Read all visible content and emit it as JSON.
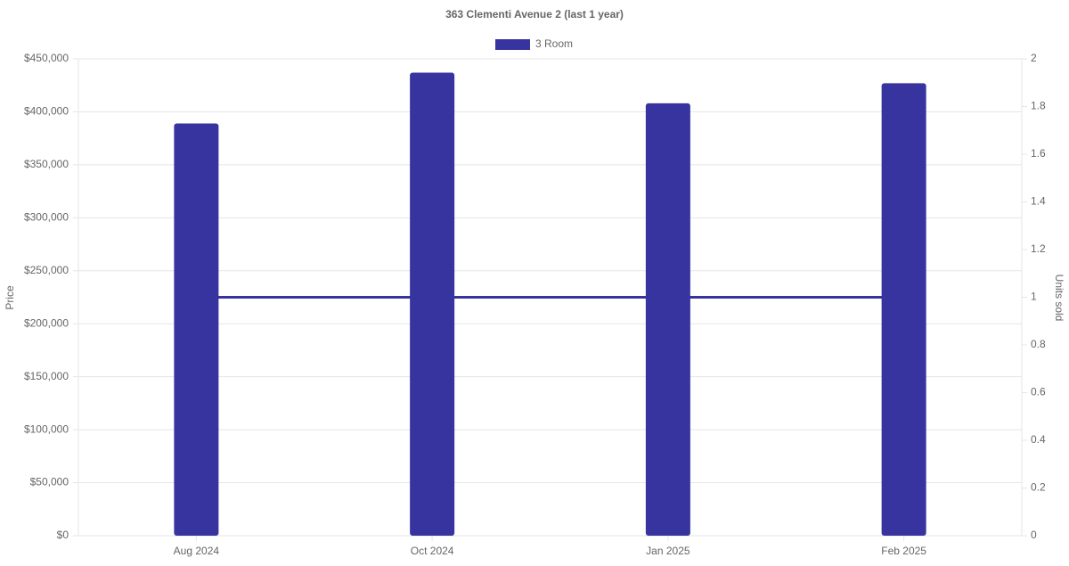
{
  "chart_data": {
    "type": "bar",
    "title": "363 Clementi Avenue 2 (last 1 year)",
    "y_label": "Price",
    "y2_label": "Units sold",
    "categories": [
      "Aug 2024",
      "Oct 2024",
      "Jan 2025",
      "Feb 2025"
    ],
    "series": [
      {
        "name": "3 Room",
        "type": "bar",
        "color": "#3734a0",
        "values": [
          389000,
          437000,
          408000,
          427000
        ]
      },
      {
        "type": "line",
        "axis": "y2",
        "color": "#3734a0",
        "values": [
          1,
          1,
          1,
          1
        ]
      }
    ],
    "ylim": [
      0,
      450000
    ],
    "yticks": [
      {
        "value": 0,
        "label": "$0"
      },
      {
        "value": 50000,
        "label": "$50,000"
      },
      {
        "value": 100000,
        "label": "$100,000"
      },
      {
        "value": 150000,
        "label": "$150,000"
      },
      {
        "value": 200000,
        "label": "$200,000"
      },
      {
        "value": 250000,
        "label": "$250,000"
      },
      {
        "value": 300000,
        "label": "$300,000"
      },
      {
        "value": 350000,
        "label": "$350,000"
      },
      {
        "value": 400000,
        "label": "$400,000"
      },
      {
        "value": 450000,
        "label": "$450,000"
      }
    ],
    "y2lim": [
      0,
      2
    ],
    "y2ticks": [
      0,
      0.2,
      0.4,
      0.6,
      0.8,
      1,
      1.2,
      1.4,
      1.6,
      1.8,
      2
    ],
    "grid": true,
    "legend": "top"
  }
}
